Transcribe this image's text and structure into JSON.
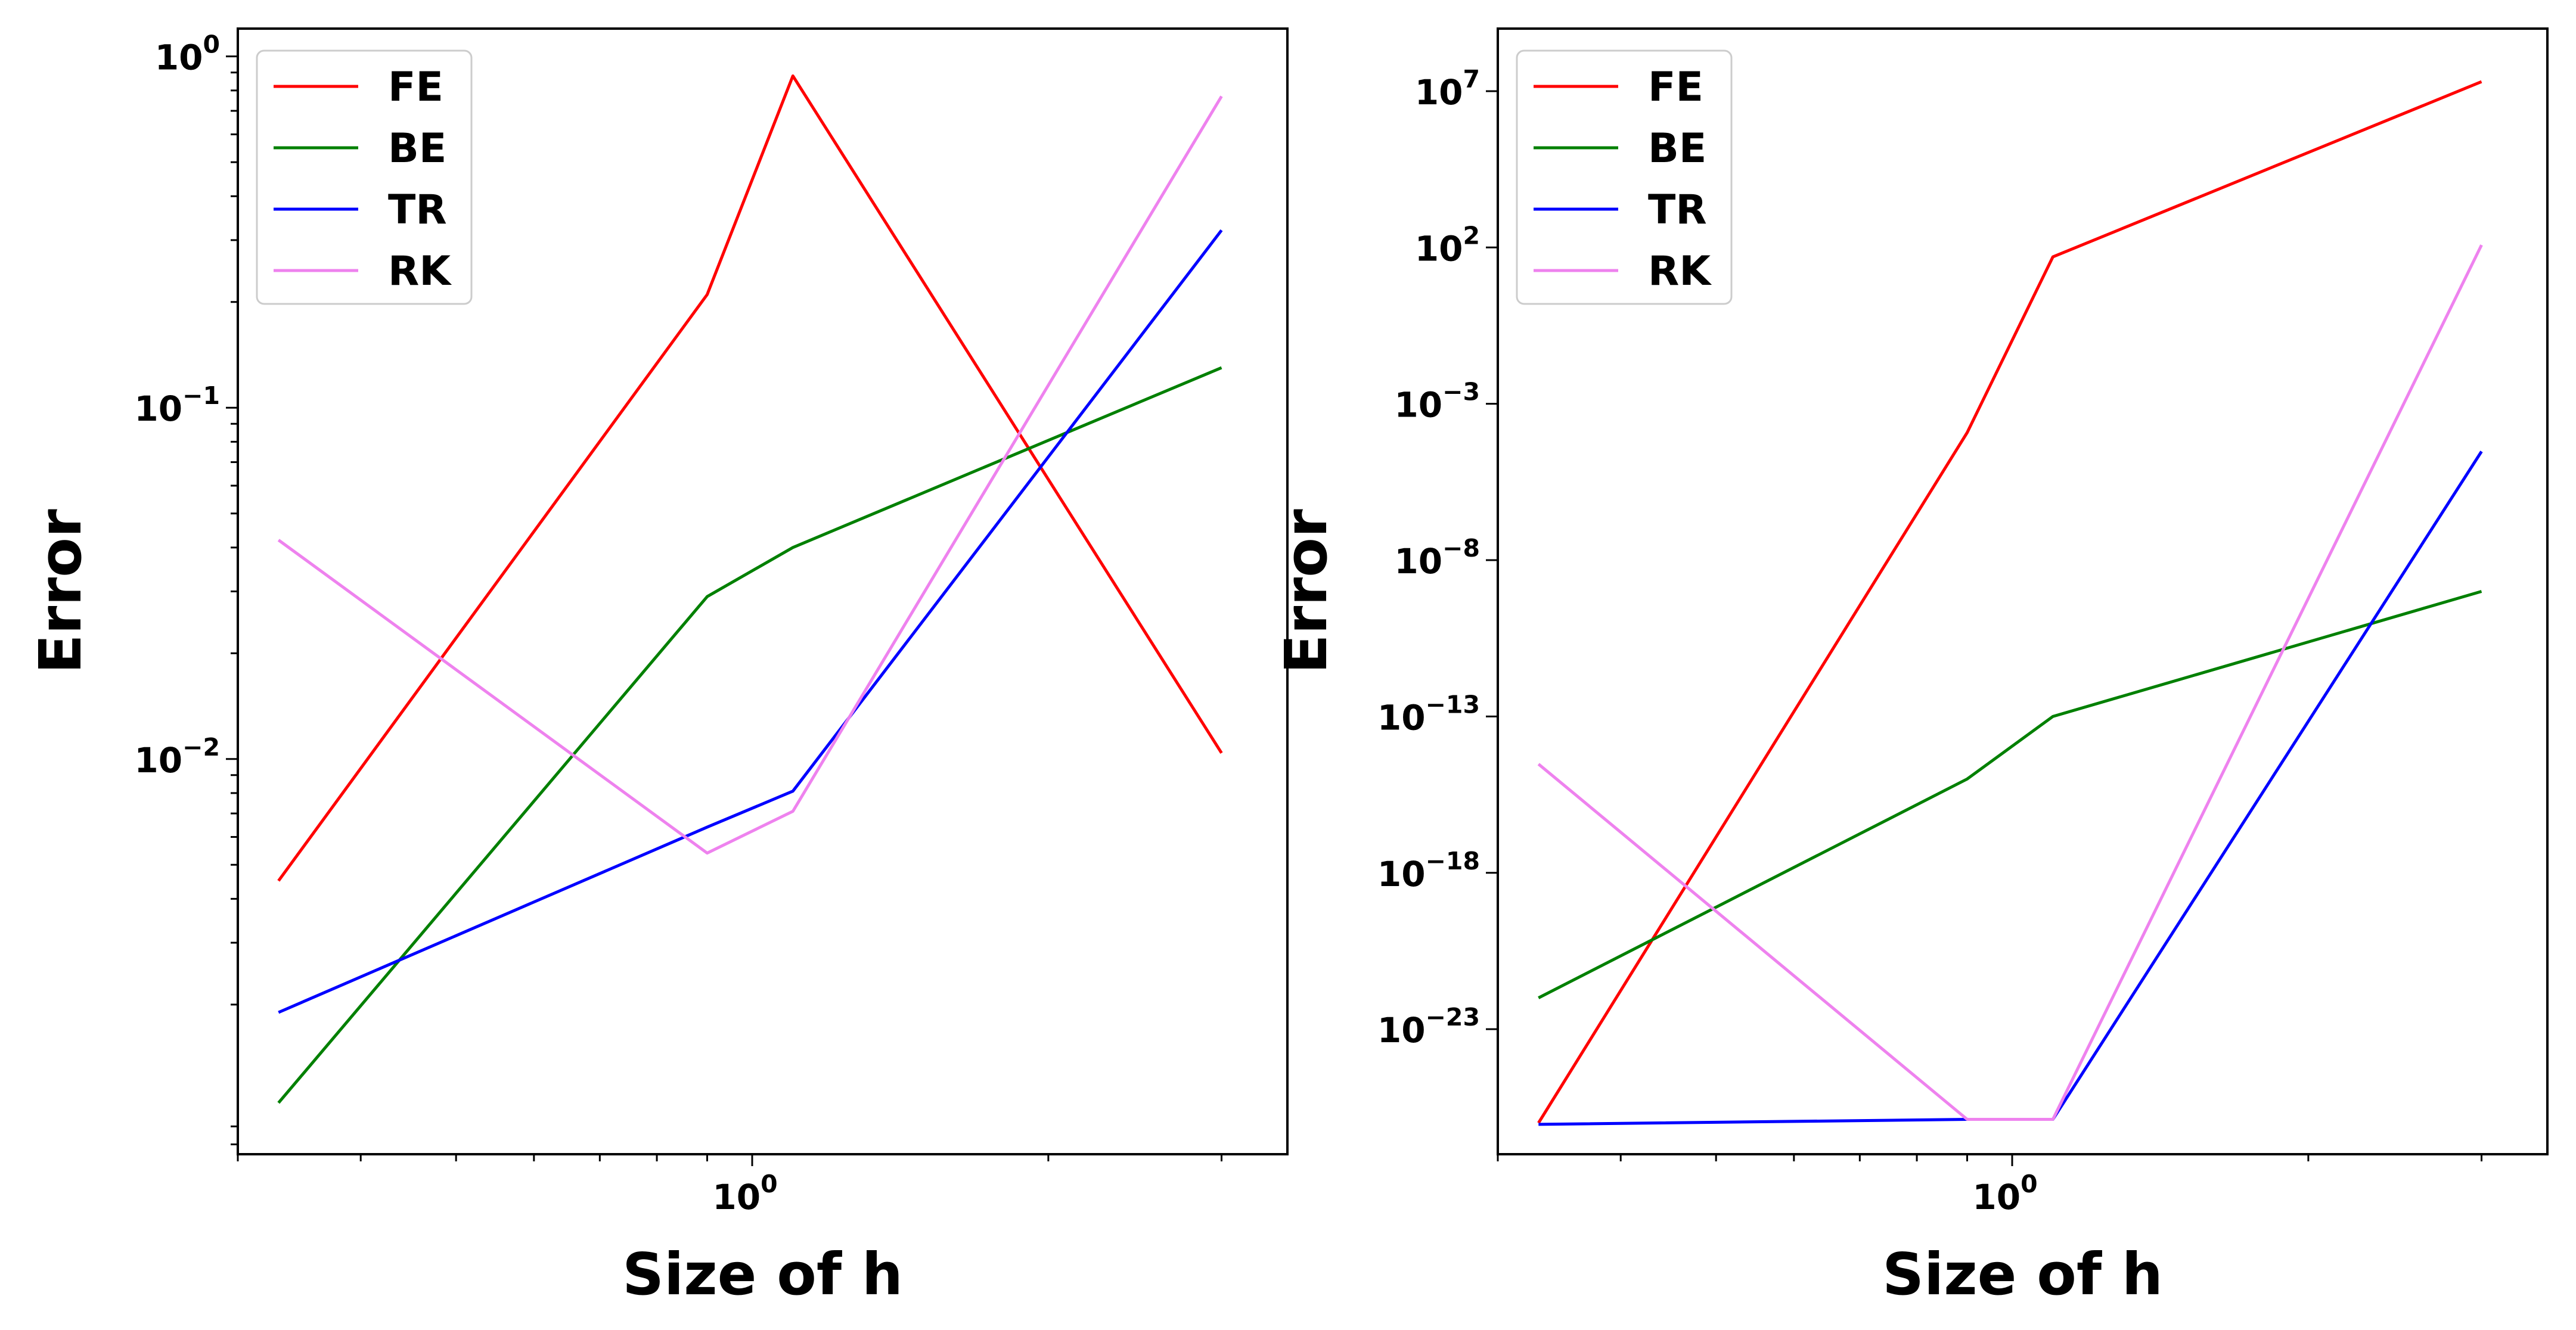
{
  "chart_data": [
    {
      "type": "line",
      "xlabel": "Size of h",
      "ylabel": "Error",
      "x_scale": "log",
      "y_scale": "log",
      "xlim": [
        0.3,
        3.5
      ],
      "ylim": [
        0.00075,
        1.2
      ],
      "x_ticks": [
        {
          "value": 1,
          "base": "10",
          "exp": "0"
        }
      ],
      "y_ticks": [
        {
          "value": 0.01,
          "base": "10",
          "exp": "−2"
        },
        {
          "value": 0.1,
          "base": "10",
          "exp": "−1"
        },
        {
          "value": 1,
          "base": "10",
          "exp": "0"
        }
      ],
      "x": [
        0.33,
        0.9,
        1.1,
        3.0
      ],
      "series": [
        {
          "name": "FE",
          "color": "#ff0000",
          "values": [
            0.0045,
            0.21,
            0.88,
            0.0104
          ]
        },
        {
          "name": "BE",
          "color": "#008000",
          "values": [
            0.00105,
            0.029,
            0.04,
            0.13
          ]
        },
        {
          "name": "TR",
          "color": "#0000ff",
          "values": [
            0.0019,
            0.0064,
            0.0081,
            0.32
          ]
        },
        {
          "name": "RK",
          "color": "#ee82ee",
          "values": [
            0.042,
            0.0054,
            0.0071,
            0.77
          ]
        }
      ],
      "legend": "top-left",
      "grid": false
    },
    {
      "type": "line",
      "xlabel": "Size of h",
      "ylabel": "Error",
      "x_scale": "log",
      "y_scale": "log",
      "xlim": [
        0.3,
        3.5
      ],
      "ylim": [
        1e-27,
        1000000000.0
      ],
      "x_ticks": [
        {
          "value": 1,
          "base": "10",
          "exp": "0"
        }
      ],
      "y_ticks": [
        {
          "value": 1e-23,
          "base": "10",
          "exp": "−23"
        },
        {
          "value": 1e-18,
          "base": "10",
          "exp": "−18"
        },
        {
          "value": 1e-13,
          "base": "10",
          "exp": "−13"
        },
        {
          "value": 1e-08,
          "base": "10",
          "exp": "−8"
        },
        {
          "value": 0.001,
          "base": "10",
          "exp": "−3"
        },
        {
          "value": 100,
          "base": "10",
          "exp": "2"
        },
        {
          "value": 10000000,
          "base": "10",
          "exp": "7"
        }
      ],
      "x": [
        0.33,
        0.9,
        1.1,
        3.0
      ],
      "series": [
        {
          "name": "FE",
          "color": "#ff0000",
          "values": [
            1e-26,
            0.00012,
            50,
            20000000
          ]
        },
        {
          "name": "BE",
          "color": "#008000",
          "values": [
            1e-22,
            1e-15,
            1e-13,
            1e-09
          ]
        },
        {
          "name": "TR",
          "color": "#0000ff",
          "values": [
            9e-27,
            1.3e-26,
            1.3e-26,
            3e-05
          ]
        },
        {
          "name": "RK",
          "color": "#ee82ee",
          "values": [
            3e-15,
            1.3e-26,
            1.3e-26,
            120
          ]
        }
      ],
      "legend": "top-left",
      "grid": false
    }
  ]
}
